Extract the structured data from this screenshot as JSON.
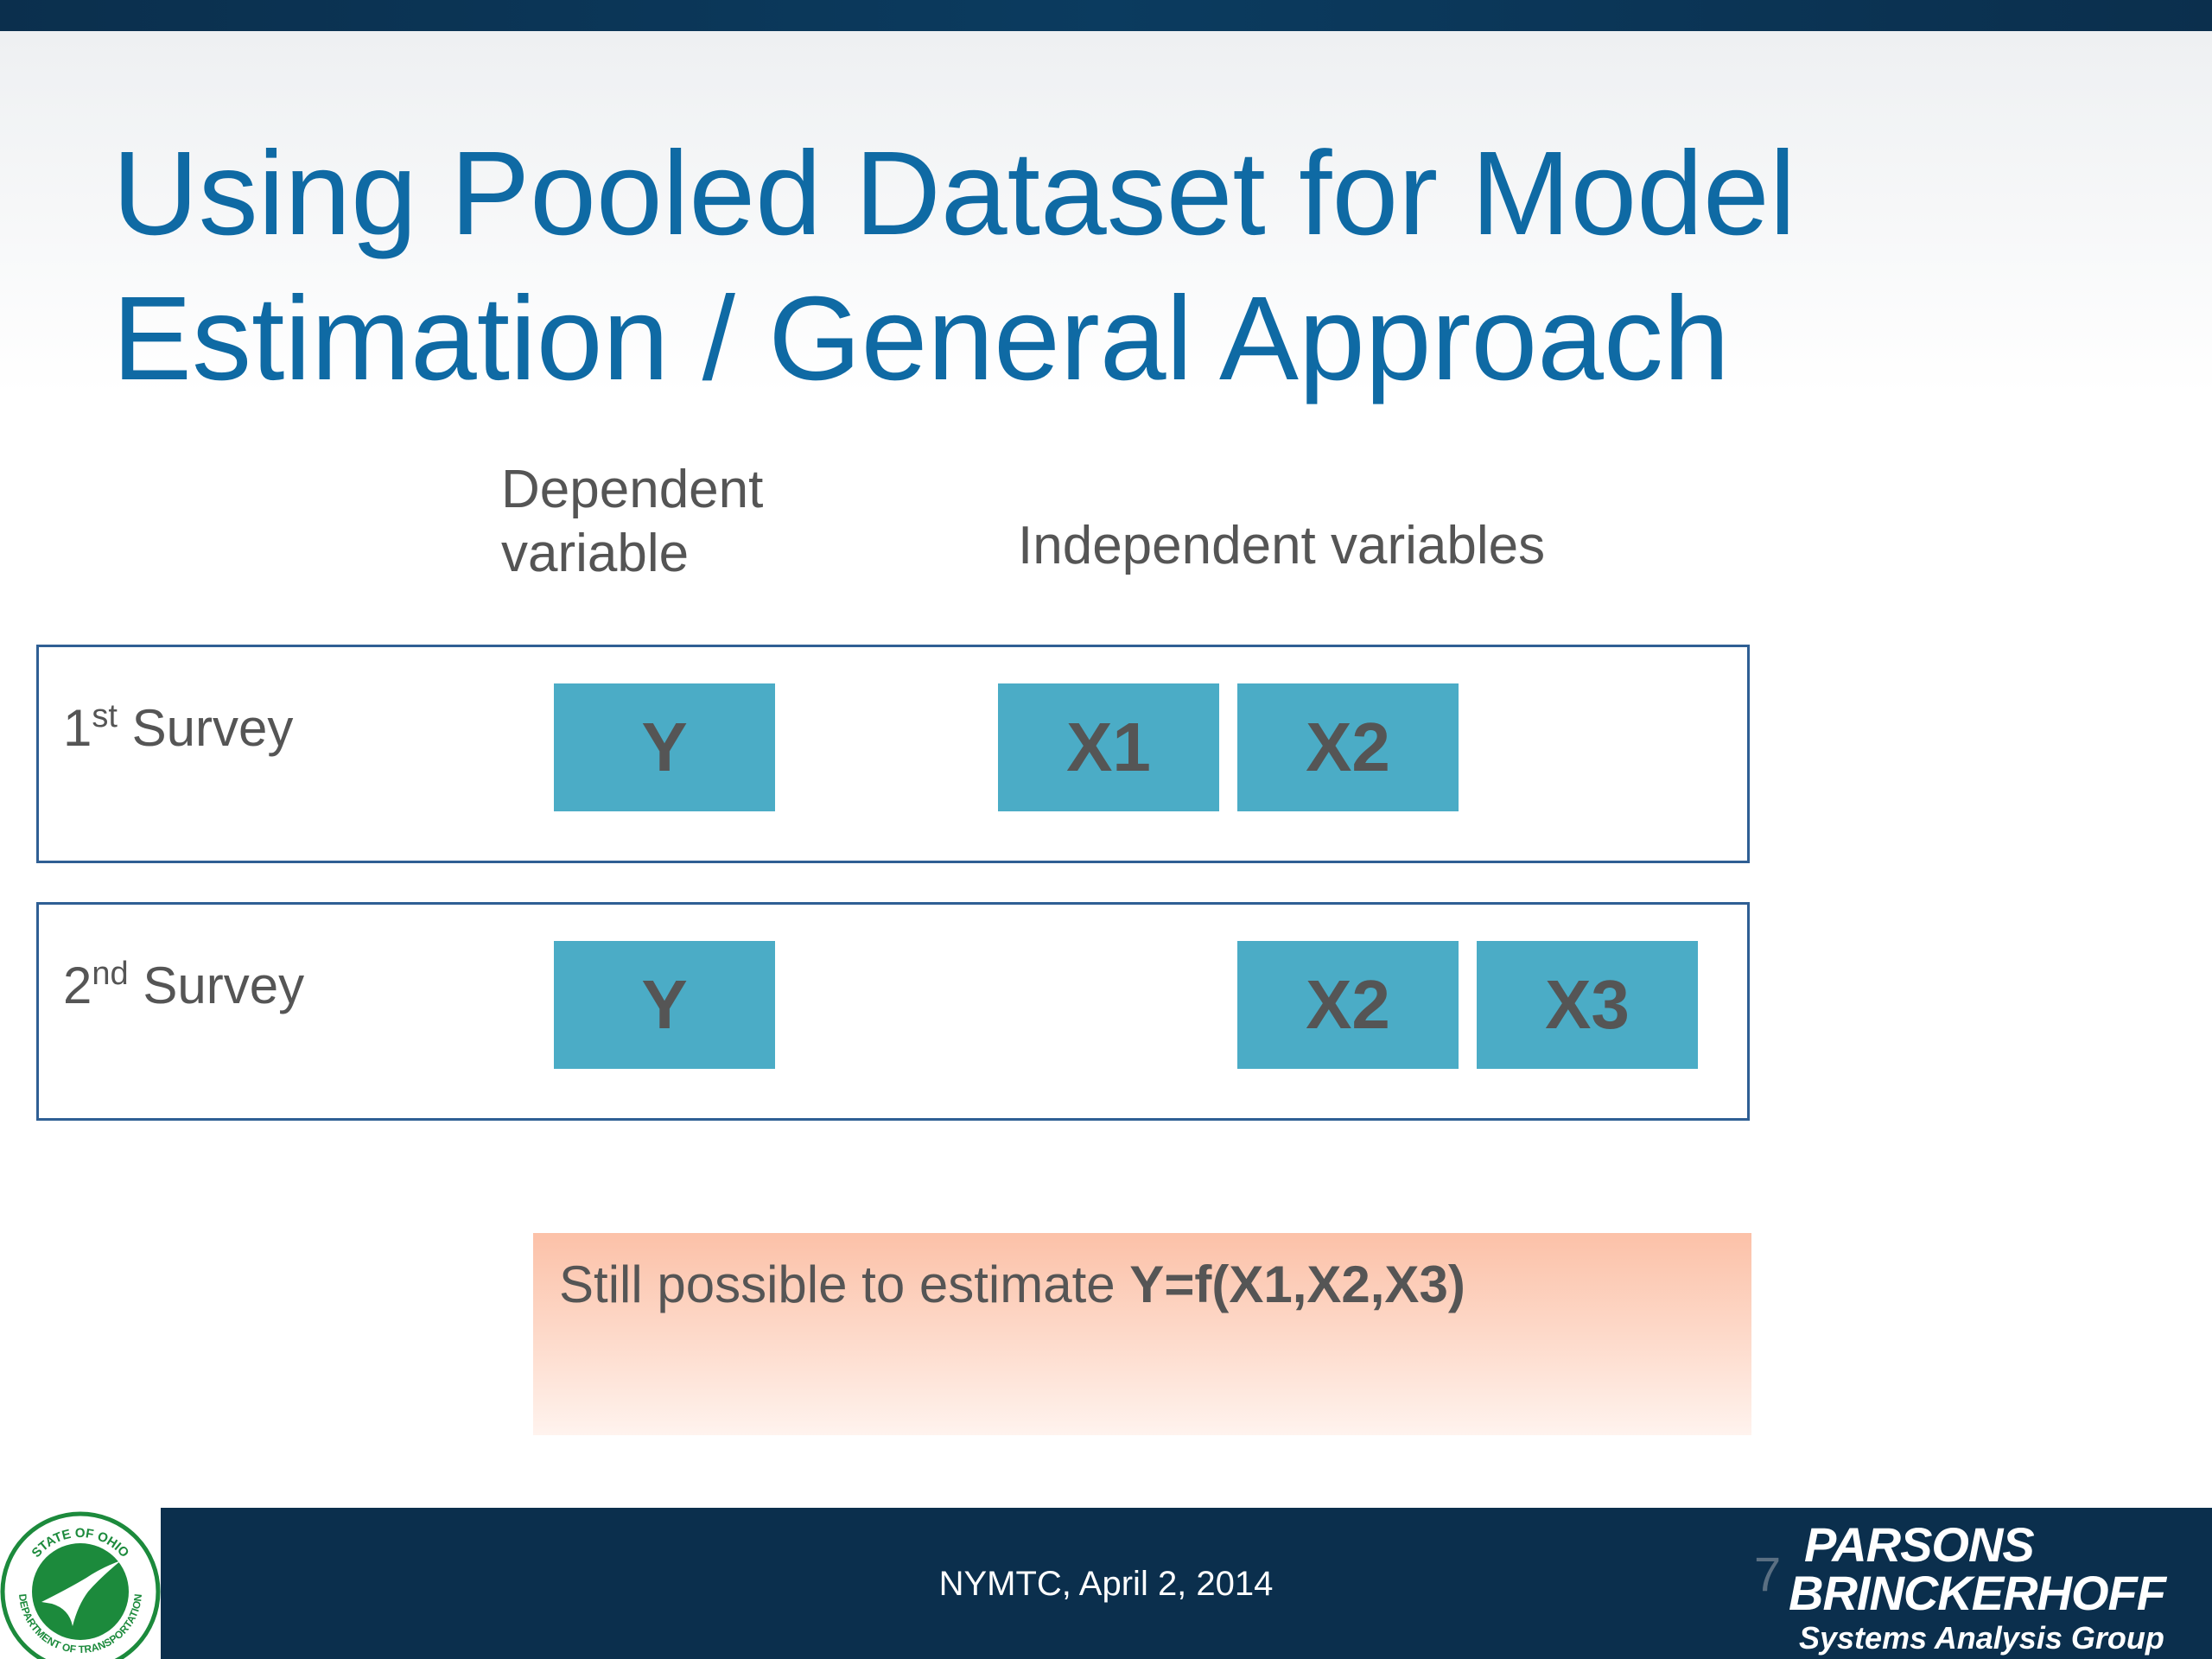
{
  "slide": {
    "title_line1": "Using Pooled Dataset for Model",
    "title_line2": "Estimation / General Approach",
    "dependent_label_line1": "Dependent",
    "dependent_label_line2": "variable",
    "independent_label": "Independent variables",
    "surveys": [
      {
        "number": "1",
        "suffix": "st",
        "label": "Survey",
        "vars": {
          "y": "Y",
          "x1": "X1",
          "x2": "X2"
        }
      },
      {
        "number": "2",
        "suffix": "nd",
        "label": "Survey",
        "vars": {
          "y": "Y",
          "x2": "X2",
          "x3": "X3"
        }
      }
    ],
    "note": {
      "text": "Still possible to estimate ",
      "formula": "Y=f(X1,X2,X3)"
    }
  },
  "footer": {
    "text": "NYMTC, April 2, 2014",
    "page_number": "7",
    "logo_line1": "PARSONS",
    "logo_line2": "BRINCKERHOFF",
    "logo_line3": "Systems Analysis Group",
    "seal_text_top": "STATE OF OHIO",
    "seal_text_bottom": "DEPARTMENT OF TRANSPORTATION"
  },
  "colors": {
    "title": "#0f6aa4",
    "var_box": "#4bacc6",
    "box_border": "#2f5f94",
    "footer_bg": "#0b2f4d",
    "note_bg": "#fcc1a8",
    "seal_green": "#1c8a3c"
  }
}
